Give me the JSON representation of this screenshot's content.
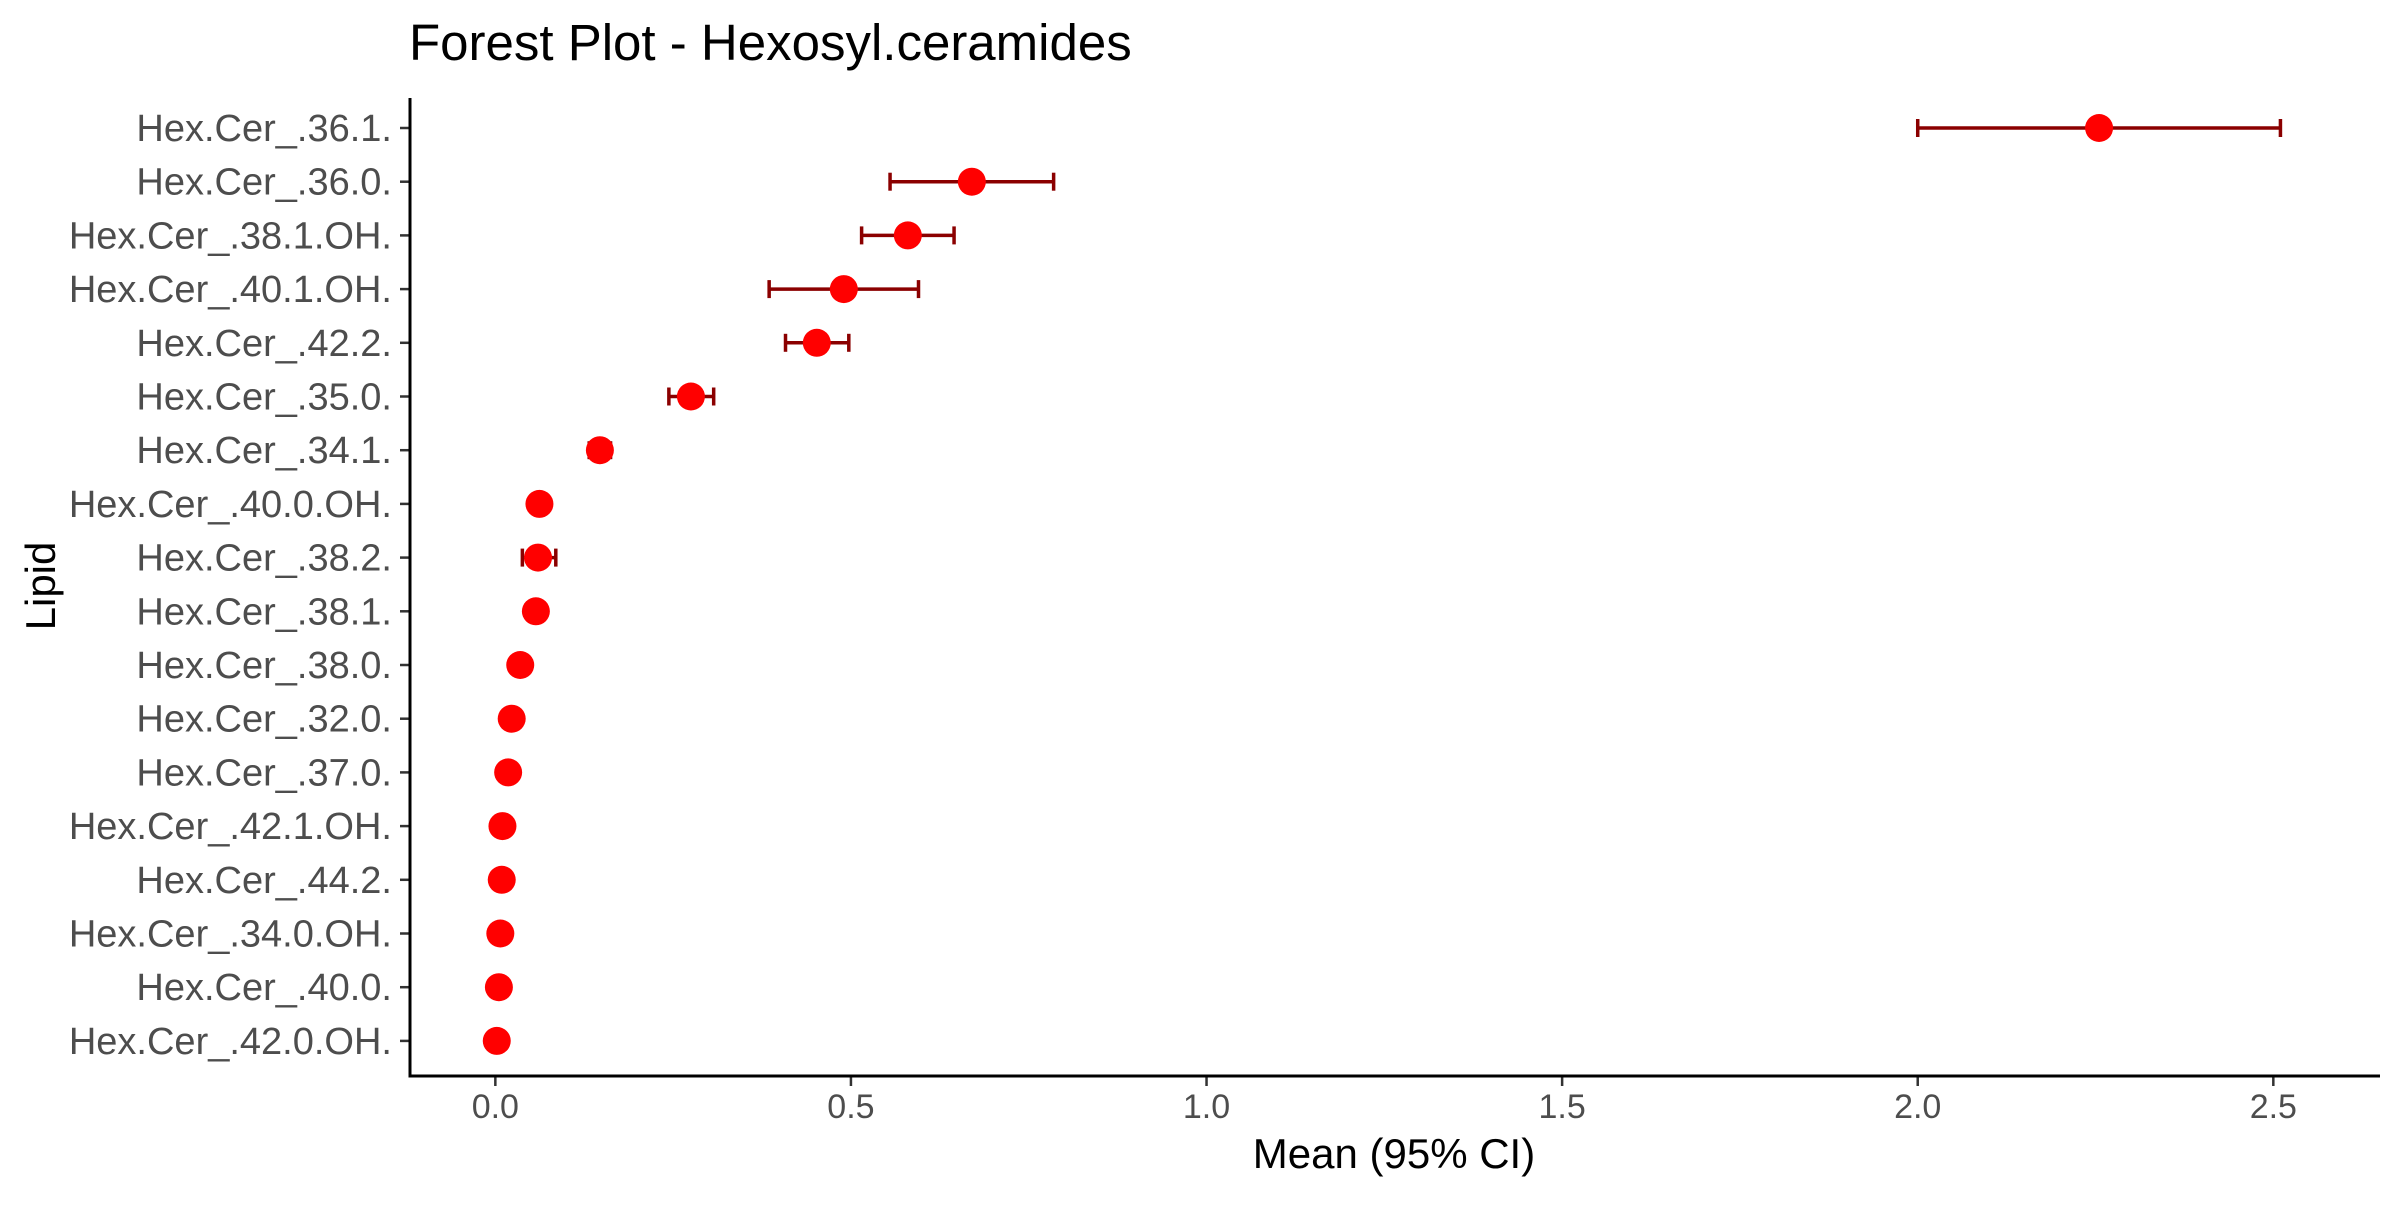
{
  "colors": {
    "point": "#ff0000",
    "errorbar": "#8b0000",
    "axis": "#000000",
    "label": "#4d4d4d",
    "background": "#ffffff"
  },
  "chart_data": {
    "type": "scatter",
    "title": "Forest Plot - Hexosyl.ceramides",
    "xlabel": "Mean (95% CI)",
    "ylabel": "Lipid",
    "xlim": [
      -0.12,
      2.65
    ],
    "xticks": [
      0.0,
      0.5,
      1.0,
      1.5,
      2.0,
      2.5
    ],
    "xtick_labels": [
      "0.0",
      "0.5",
      "1.0",
      "1.5",
      "2.0",
      "2.5"
    ],
    "grid": false,
    "legend": "none",
    "points": [
      {
        "label": "Hex.Cer_.36.1.",
        "mean": 2.255,
        "lower": 2.0,
        "upper": 2.51
      },
      {
        "label": "Hex.Cer_.36.0.",
        "mean": 0.67,
        "lower": 0.555,
        "upper": 0.785
      },
      {
        "label": "Hex.Cer_.38.1.OH.",
        "mean": 0.58,
        "lower": 0.515,
        "upper": 0.645
      },
      {
        "label": "Hex.Cer_.40.1.OH.",
        "mean": 0.49,
        "lower": 0.385,
        "upper": 0.595
      },
      {
        "label": "Hex.Cer_.42.2.",
        "mean": 0.452,
        "lower": 0.408,
        "upper": 0.497
      },
      {
        "label": "Hex.Cer_.35.0.",
        "mean": 0.275,
        "lower": 0.244,
        "upper": 0.307
      },
      {
        "label": "Hex.Cer_.34.1.",
        "mean": 0.147,
        "lower": 0.132,
        "upper": 0.162
      },
      {
        "label": "Hex.Cer_.40.0.OH.",
        "mean": 0.062,
        "lower": 0.05,
        "upper": 0.073
      },
      {
        "label": "Hex.Cer_.38.2.",
        "mean": 0.06,
        "lower": 0.038,
        "upper": 0.085
      },
      {
        "label": "Hex.Cer_.38.1.",
        "mean": 0.057,
        "lower": 0.048,
        "upper": 0.066
      },
      {
        "label": "Hex.Cer_.38.0.",
        "mean": 0.035,
        "lower": 0.028,
        "upper": 0.043
      },
      {
        "label": "Hex.Cer_.32.0.",
        "mean": 0.023,
        "lower": 0.015,
        "upper": 0.031
      },
      {
        "label": "Hex.Cer_.37.0.",
        "mean": 0.018,
        "lower": 0.013,
        "upper": 0.023
      },
      {
        "label": "Hex.Cer_.42.1.OH.",
        "mean": 0.01,
        "lower": 0.005,
        "upper": 0.015
      },
      {
        "label": "Hex.Cer_.44.2.",
        "mean": 0.009,
        "lower": 0.006,
        "upper": 0.012
      },
      {
        "label": "Hex.Cer_.34.0.OH.",
        "mean": 0.007,
        "lower": 0.004,
        "upper": 0.01
      },
      {
        "label": "Hex.Cer_.40.0.",
        "mean": 0.005,
        "lower": 0.003,
        "upper": 0.007
      },
      {
        "label": "Hex.Cer_.42.0.OH.",
        "mean": 0.002,
        "lower": 0.001,
        "upper": 0.003
      }
    ]
  }
}
